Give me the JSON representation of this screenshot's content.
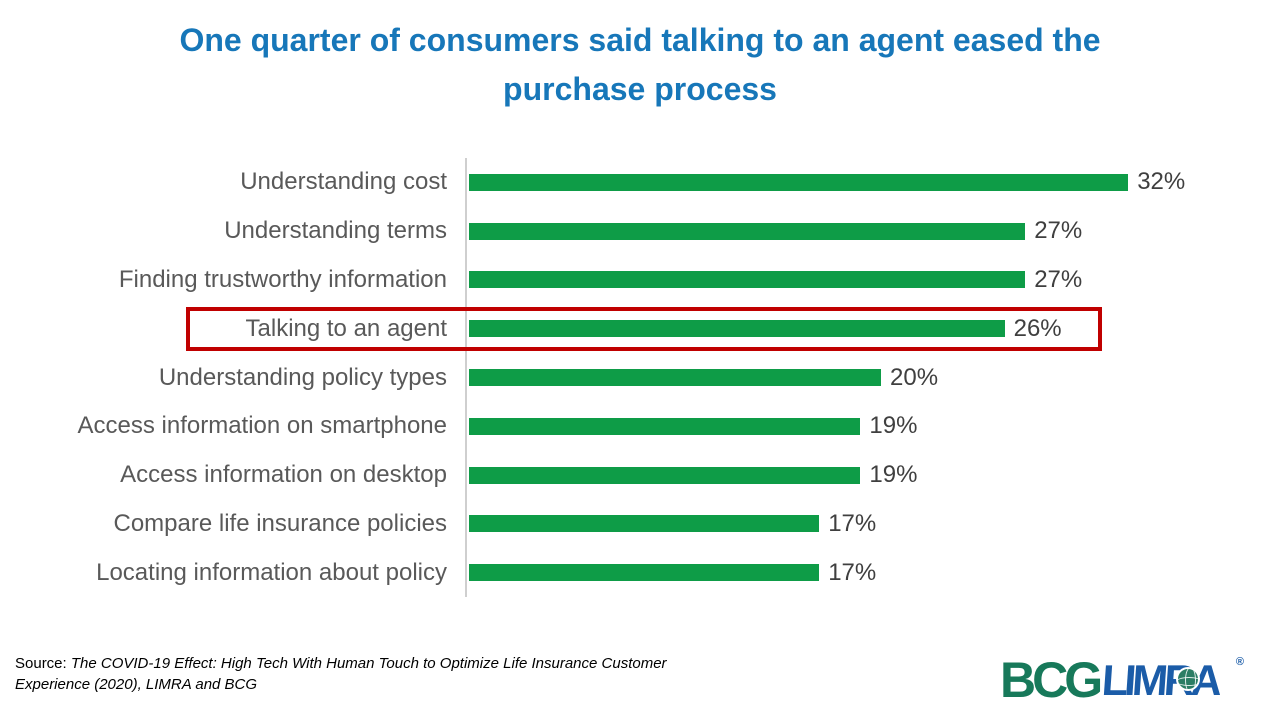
{
  "title": {
    "lines": [
      "One quarter of consumers said talking to an agent eased the",
      "purchase process"
    ]
  },
  "chart_data": {
    "type": "bar",
    "orientation": "horizontal",
    "categories": [
      "Understanding cost",
      "Understanding terms",
      "Finding trustworthy information",
      "Talking to an agent",
      "Understanding policy types",
      "Access information on smartphone",
      "Access information on desktop",
      "Compare life insurance policies",
      "Locating information about policy"
    ],
    "values": [
      32,
      27,
      27,
      26,
      20,
      19,
      19,
      17,
      17
    ],
    "value_suffix": "%",
    "value_labels": true,
    "xlim": [
      0,
      35
    ],
    "grid": false,
    "legend": false,
    "highlighted_category": "Talking to an agent",
    "annotation": "red box around highlighted row"
  },
  "source": {
    "prefix": "Source:",
    "citation": "The COVID-19 Effect: High Tech With Human Touch to Optimize Life Insurance Customer Experience (2020), LIMRA and BCG"
  },
  "logos": {
    "bcg": "BCG",
    "limra": "LIMRA",
    "registered_mark": "®"
  },
  "colors": {
    "title": "#1777B9",
    "bar": "#0E9C47",
    "category_label": "#595959",
    "value_label": "#3F3F3F",
    "highlight_border": "#C00000",
    "axis_line": "#CFCFCF",
    "bcg_green": "#17795A",
    "limra_blue": "#1B5CA8"
  }
}
